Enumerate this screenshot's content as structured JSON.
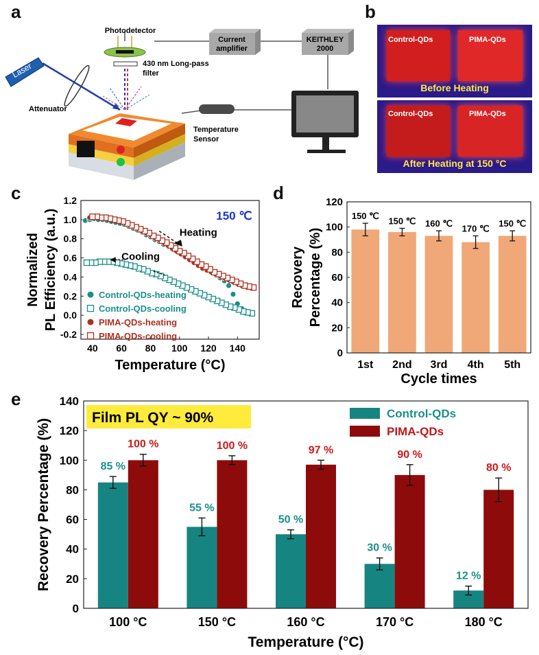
{
  "panels": {
    "a": "a",
    "b": "b",
    "c": "c",
    "d": "d",
    "e": "e"
  },
  "setup": {
    "photodetector": "Photodetector",
    "current_amplifier_1": "Current",
    "current_amplifier_2": "amplifier",
    "keithley_1": "KEITHLEY",
    "keithley_2": "2000",
    "laser": "Laser",
    "filter_1": "430 nm Long-pass",
    "filter_2": "filter",
    "attenuator": "Attenuator",
    "temp_sensor_1": "Temperature",
    "temp_sensor_2": "Sensor"
  },
  "photos": {
    "top_left": "Control-QDs",
    "top_right": "PIMA-QDs",
    "top_caption": "Before Heating",
    "bottom_left": "Control-QDs",
    "bottom_right": "PIMA-QDs",
    "bottom_caption": "After Heating at 150 °C"
  },
  "colors": {
    "control": "#1a8f8a",
    "pima": "#b03020",
    "orange_bar": "#f0a878",
    "teal_bar": "#168581",
    "red_bar": "#8e0b0b",
    "highlight": "#ffeb3b",
    "blue_text": "#1a35c8"
  },
  "chart_data": [
    {
      "panel": "c",
      "type": "scatter",
      "xlabel": "Temperature (°C)",
      "ylabel_line1": "Normalized",
      "ylabel_line2": "PL Efficiency (a.u.)",
      "xlim": [
        32,
        155
      ],
      "ylim": [
        -0.25,
        1.2
      ],
      "xticks": [
        40,
        60,
        80,
        100,
        120,
        140
      ],
      "yticks": [
        -0.2,
        0.0,
        0.2,
        0.4,
        0.6,
        0.8,
        1.0,
        1.2
      ],
      "ytick_labels": [
        "-0.2",
        "0.0",
        "0.2",
        "0.4",
        "0.6",
        "0.8",
        "1.0",
        "1.2"
      ],
      "xtick_labels": [
        "40",
        "60",
        "80",
        "100",
        "120",
        "140"
      ],
      "annotation_temp": "150 ℃",
      "annotation_heating": "Heating",
      "annotation_cooling": "Cooling",
      "series": [
        {
          "name": "Control-QDs-heating",
          "marker": "filled-circle",
          "color": "#1a8f8a",
          "x": [
            35,
            38,
            41,
            44,
            47,
            50,
            53,
            56,
            59,
            62,
            65,
            68,
            71,
            74,
            77,
            80,
            83,
            86,
            89,
            92,
            95,
            98,
            101,
            104,
            107,
            110,
            113,
            116,
            119,
            122,
            125,
            128,
            131,
            134,
            137,
            140,
            143,
            146,
            149
          ],
          "y": [
            0.99,
            1.0,
            1.01,
            1.0,
            1.0,
            0.99,
            0.98,
            0.97,
            0.96,
            0.95,
            0.93,
            0.91,
            0.89,
            0.87,
            0.84,
            0.82,
            0.79,
            0.77,
            0.74,
            0.72,
            0.69,
            0.67,
            0.64,
            0.62,
            0.59,
            0.56,
            0.53,
            0.51,
            0.48,
            0.45,
            0.42,
            0.39,
            0.36,
            0.31,
            0.22,
            0.12,
            0.07,
            0.04,
            0.02
          ]
        },
        {
          "name": "Control-QDs-cooling",
          "marker": "open-square",
          "color": "#1a8f8a",
          "x": [
            150,
            147,
            144,
            141,
            138,
            135,
            132,
            129,
            126,
            123,
            120,
            117,
            114,
            111,
            108,
            105,
            102,
            99,
            96,
            93,
            90,
            87,
            84,
            81,
            78,
            75,
            72,
            69,
            66,
            63,
            60,
            57,
            54,
            51,
            48,
            45,
            42,
            39,
            36
          ],
          "y": [
            0.02,
            0.03,
            0.04,
            0.06,
            0.08,
            0.09,
            0.11,
            0.13,
            0.15,
            0.17,
            0.19,
            0.21,
            0.23,
            0.25,
            0.27,
            0.29,
            0.31,
            0.33,
            0.35,
            0.37,
            0.39,
            0.41,
            0.43,
            0.44,
            0.46,
            0.48,
            0.49,
            0.51,
            0.52,
            0.53,
            0.54,
            0.55,
            0.56,
            0.56,
            0.56,
            0.56,
            0.55,
            0.55,
            0.55
          ]
        },
        {
          "name": "PIMA-QDs-heating",
          "marker": "filled-circle",
          "color": "#b03020",
          "x": [
            38,
            41,
            44,
            47,
            50,
            53,
            56,
            59,
            62,
            65,
            68,
            71,
            74,
            77,
            80,
            83,
            86,
            89,
            92,
            95,
            98,
            101,
            104,
            107,
            110,
            113,
            116,
            119,
            122,
            125,
            128,
            131,
            134,
            137,
            140,
            143,
            146,
            149
          ],
          "y": [
            1.02,
            1.03,
            1.03,
            1.02,
            1.02,
            1.01,
            1.0,
            0.99,
            0.97,
            0.95,
            0.93,
            0.91,
            0.88,
            0.86,
            0.84,
            0.81,
            0.79,
            0.76,
            0.73,
            0.7,
            0.67,
            0.64,
            0.61,
            0.58,
            0.55,
            0.52,
            0.49,
            0.47,
            0.45,
            0.43,
            0.41,
            0.39,
            0.37,
            0.35,
            0.33,
            0.31,
            0.3,
            0.29
          ]
        },
        {
          "name": "PIMA-QDs-cooling",
          "marker": "open-square",
          "color": "#b03020",
          "x": [
            151,
            148,
            145,
            142,
            139,
            136,
            133,
            130,
            127,
            124,
            121,
            118,
            115,
            112,
            109,
            106,
            103,
            100,
            97,
            94,
            91,
            88,
            85,
            82,
            79,
            76,
            73,
            70,
            67,
            64,
            61,
            58,
            55,
            52,
            49,
            46,
            43,
            40
          ],
          "y": [
            0.29,
            0.3,
            0.31,
            0.33,
            0.35,
            0.37,
            0.39,
            0.41,
            0.43,
            0.45,
            0.48,
            0.51,
            0.53,
            0.56,
            0.59,
            0.62,
            0.65,
            0.67,
            0.7,
            0.73,
            0.76,
            0.78,
            0.81,
            0.83,
            0.86,
            0.88,
            0.9,
            0.92,
            0.94,
            0.96,
            0.98,
            0.99,
            1.0,
            1.01,
            1.02,
            1.02,
            1.03,
            1.03
          ]
        }
      ]
    },
    {
      "panel": "d",
      "type": "bar",
      "xlabel": "Cycle times",
      "ylabel_line1": "Recovery",
      "ylabel_line2": "Percentage (%)",
      "ylim": [
        0,
        120
      ],
      "yticks": [
        0,
        20,
        40,
        60,
        80,
        100,
        120
      ],
      "ytick_labels": [
        "0",
        "20",
        "40",
        "60",
        "80",
        "100",
        "120"
      ],
      "categories": [
        "1st",
        "2nd",
        "3rd",
        "4th",
        "5th"
      ],
      "values": [
        98,
        96,
        93,
        88,
        93
      ],
      "errors": [
        5,
        3,
        4,
        5,
        4
      ],
      "labels": [
        "150 ℃",
        "150 ℃",
        "160 ℃",
        "170 ℃",
        "150 ℃"
      ]
    },
    {
      "panel": "e",
      "type": "bar",
      "title": "Film PL QY ~ 90%",
      "xlabel": "Temperature (°C)",
      "ylabel": "Recovery Percentage (%)",
      "ylim": [
        0,
        140
      ],
      "yticks": [
        0,
        20,
        40,
        60,
        80,
        100,
        120,
        140
      ],
      "ytick_labels": [
        "0",
        "20",
        "40",
        "60",
        "80",
        "100",
        "120",
        "140"
      ],
      "categories": [
        "100 °C",
        "150 °C",
        "160 °C",
        "170 °C",
        "180 °C"
      ],
      "series": [
        {
          "name": "Control-QDs",
          "color": "#168581",
          "values": [
            85,
            55,
            50,
            30,
            12
          ],
          "errors": [
            4,
            6,
            3,
            4,
            3
          ],
          "labels": [
            "85 %",
            "55 %",
            "50 %",
            "30 %",
            "12 %"
          ]
        },
        {
          "name": "PIMA-QDs",
          "color": "#8e0b0b",
          "values": [
            100,
            100,
            97,
            90,
            80
          ],
          "errors": [
            4,
            3,
            3,
            7,
            8
          ],
          "labels": [
            "100 %",
            "100 %",
            "97 %",
            "90 %",
            "80 %"
          ]
        }
      ]
    }
  ]
}
